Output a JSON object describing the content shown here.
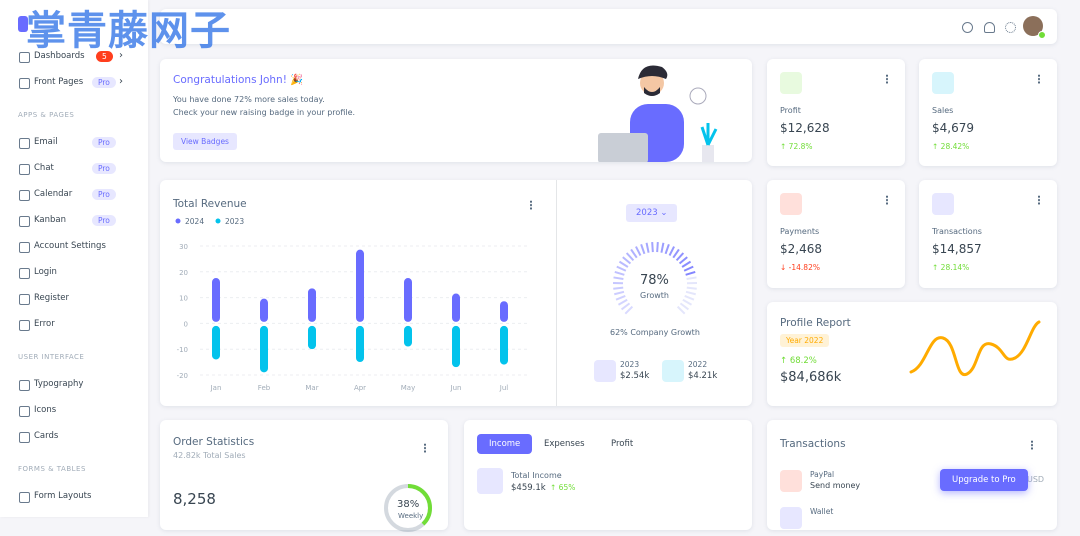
{
  "watermark": "掌青藤网子",
  "sidebar": {
    "items": [
      {
        "label": "Dashboards",
        "badge": "5"
      },
      {
        "label": "Front Pages",
        "badge": "Pro"
      },
      {
        "section": "APPS & PAGES"
      },
      {
        "label": "Email",
        "badge": "Pro"
      },
      {
        "label": "Chat",
        "badge": "Pro"
      },
      {
        "label": "Calendar",
        "badge": "Pro"
      },
      {
        "label": "Kanban",
        "badge": "Pro"
      },
      {
        "label": "Account Settings"
      },
      {
        "label": "Login"
      },
      {
        "label": "Register"
      },
      {
        "label": "Error"
      },
      {
        "section": "USER INTERFACE"
      },
      {
        "label": "Typography"
      },
      {
        "label": "Icons"
      },
      {
        "label": "Cards"
      },
      {
        "section": "FORMS & TABLES"
      },
      {
        "label": "Form Layouts"
      }
    ]
  },
  "congrats": {
    "title": "Congratulations John! 🎉",
    "lines": [
      "You have done 72% more sales today.",
      "Check your new raising badge in your profile."
    ],
    "button": "View Badges"
  },
  "stats": [
    {
      "label": "Profit",
      "value": "$12,628",
      "change": "72.8%",
      "dir": "up"
    },
    {
      "label": "Sales",
      "value": "$4,679",
      "change": "28.42%",
      "dir": "up"
    },
    {
      "label": "Payments",
      "value": "$2,468",
      "change": "-14.82%",
      "dir": "down"
    },
    {
      "label": "Transactions",
      "value": "$14,857",
      "change": "28.14%",
      "dir": "up"
    }
  ],
  "revenue": {
    "title": "Total Revenue",
    "categories": [
      "Jan",
      "Feb",
      "Mar",
      "Apr",
      "May",
      "Jun",
      "Jul"
    ],
    "series": [
      {
        "name": "2024",
        "color": "#696cff",
        "values": [
          17,
          9,
          13,
          28,
          17,
          11,
          8
        ]
      },
      {
        "name": "2023",
        "color": "#03c3ec",
        "values": [
          -13,
          -18,
          -9,
          -14,
          -8,
          -16,
          -15
        ]
      }
    ],
    "ylim": [
      -20,
      30
    ],
    "yticks": [
      30,
      20,
      10,
      0,
      -10,
      -20
    ]
  },
  "growth": {
    "year": "2023",
    "value": 78,
    "value_label": "78%",
    "label": "Growth",
    "caption": "62% Company Growth",
    "years": [
      {
        "year": "2023",
        "amount": "$2.54k"
      },
      {
        "year": "2022",
        "amount": "$4.21k"
      }
    ]
  },
  "profile": {
    "title": "Profile Report",
    "badge": "Year 2022",
    "change": "68.2%",
    "value": "$84,686k"
  },
  "orders": {
    "title": "Order Statistics",
    "subtitle": "42.82k Total Sales",
    "total": "8,258",
    "percent": 38,
    "percent_label": "38%",
    "percent_caption": "Weekly"
  },
  "income": {
    "tabs": [
      "Income",
      "Expenses",
      "Profit"
    ],
    "label": "Total Income",
    "value": "$459.1k",
    "change": "65%"
  },
  "transactions": {
    "title": "Transactions",
    "items": [
      {
        "name": "PayPal",
        "desc": "Send money"
      },
      {
        "name": "Wallet"
      }
    ],
    "currency": "USD"
  },
  "upgrade": "Upgrade to Pro"
}
